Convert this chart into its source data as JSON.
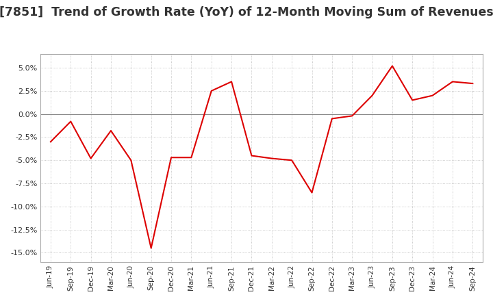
{
  "title": "[7851]  Trend of Growth Rate (YoY) of 12-Month Moving Sum of Revenues",
  "title_fontsize": 12.5,
  "line_color": "#dd0000",
  "background_color": "#ffffff",
  "grid_color": "#bbbbbb",
  "ylim": [
    -0.16,
    0.065
  ],
  "yticks": [
    0.05,
    0.025,
    0.0,
    -0.025,
    -0.05,
    -0.075,
    -0.1,
    -0.125,
    -0.15
  ],
  "dates": [
    "Jun-19",
    "Sep-19",
    "Dec-19",
    "Mar-20",
    "Jun-20",
    "Sep-20",
    "Dec-20",
    "Mar-21",
    "Jun-21",
    "Sep-21",
    "Dec-21",
    "Mar-22",
    "Jun-22",
    "Sep-22",
    "Dec-22",
    "Mar-23",
    "Jun-23",
    "Sep-23",
    "Dec-23",
    "Mar-24",
    "Jun-24",
    "Sep-24"
  ],
  "values": [
    -0.03,
    -0.008,
    -0.048,
    -0.018,
    -0.05,
    -0.145,
    -0.047,
    -0.047,
    0.025,
    0.035,
    -0.045,
    -0.048,
    -0.05,
    -0.085,
    -0.005,
    -0.002,
    0.02,
    0.052,
    0.015,
    0.02,
    0.035,
    0.033
  ]
}
